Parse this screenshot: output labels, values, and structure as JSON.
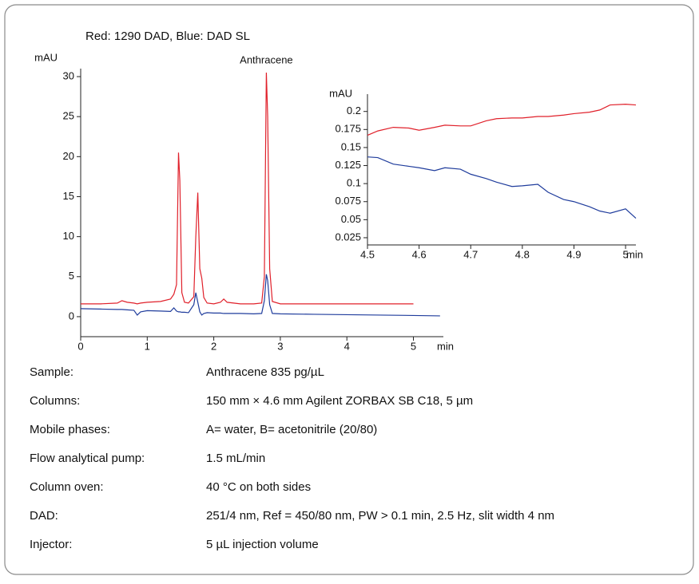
{
  "chart_data": [
    {
      "type": "line",
      "title": "Red: 1290 DAD, Blue: DAD SL",
      "y_label": "mAU",
      "x_label": "min",
      "annotation": "Anthracene",
      "x": [
        0,
        0.3,
        0.55,
        0.62,
        0.7,
        0.8,
        0.85,
        0.9,
        1.0,
        1.2,
        1.35,
        1.4,
        1.44,
        1.47,
        1.49,
        1.52,
        1.56,
        1.62,
        1.7,
        1.73,
        1.76,
        1.79,
        1.82,
        1.85,
        1.9,
        2.0,
        2.1,
        2.15,
        2.2,
        2.4,
        2.6,
        2.72,
        2.76,
        2.79,
        2.81,
        2.84,
        2.88,
        3.0,
        3.5,
        4.0,
        4.5,
        5.0,
        5.4
      ],
      "series": [
        {
          "color": "#e0202a",
          "values": [
            1.6,
            1.6,
            1.7,
            2.0,
            1.8,
            1.7,
            1.6,
            1.7,
            1.8,
            1.9,
            2.2,
            2.8,
            4,
            20.5,
            17,
            3,
            1.8,
            1.7,
            2.5,
            10,
            15.5,
            6,
            4.8,
            2.4,
            1.7,
            1.6,
            1.8,
            2.2,
            1.8,
            1.6,
            1.6,
            1.7,
            5,
            30.5,
            25,
            6,
            1.9,
            1.6,
            1.6,
            1.6,
            1.6,
            1.6,
            null
          ]
        },
        {
          "color": "#1f3c9c",
          "values": [
            1.0,
            0.95,
            0.9,
            0.9,
            0.85,
            0.8,
            0.2,
            0.6,
            0.75,
            0.7,
            0.65,
            1.1,
            0.7,
            0.6,
            0.6,
            0.55,
            0.55,
            0.5,
            1.5,
            3.0,
            1.8,
            0.6,
            0.2,
            0.4,
            0.5,
            0.45,
            0.45,
            0.4,
            0.4,
            0.4,
            0.35,
            0.4,
            2.0,
            5.3,
            4.5,
            1.5,
            0.4,
            0.35,
            0.3,
            0.25,
            0.2,
            0.15,
            0.1
          ]
        }
      ],
      "xlim": [
        0,
        5.45
      ],
      "xticks": [
        0,
        1,
        2,
        3,
        4,
        5
      ],
      "ylim": [
        -2.5,
        31
      ],
      "yticks": [
        0,
        5,
        10,
        15,
        20,
        25,
        30
      ]
    },
    {
      "type": "line",
      "y_label": "mAU",
      "x_label": "min",
      "x": [
        4.5,
        4.52,
        4.55,
        4.58,
        4.6,
        4.63,
        4.65,
        4.68,
        4.7,
        4.73,
        4.75,
        4.78,
        4.8,
        4.83,
        4.85,
        4.88,
        4.9,
        4.93,
        4.95,
        4.97,
        5.0,
        5.02
      ],
      "series": [
        {
          "color": "#e0202a",
          "values": [
            0.167,
            0.173,
            0.178,
            0.177,
            0.174,
            0.178,
            0.181,
            0.18,
            0.18,
            0.187,
            0.19,
            0.191,
            0.191,
            0.193,
            0.193,
            0.195,
            0.197,
            0.199,
            0.202,
            0.209,
            0.21,
            0.209
          ]
        },
        {
          "color": "#1f3c9c",
          "values": [
            0.137,
            0.136,
            0.127,
            0.124,
            0.122,
            0.118,
            0.122,
            0.12,
            0.113,
            0.107,
            0.102,
            0.096,
            0.097,
            0.099,
            0.088,
            0.078,
            0.075,
            0.068,
            0.062,
            0.059,
            0.065,
            0.052
          ]
        }
      ],
      "xlim": [
        4.5,
        5.02
      ],
      "xticks": [
        4.5,
        4.6,
        4.7,
        4.8,
        4.9,
        5
      ],
      "ylim": [
        0.015,
        0.224
      ],
      "yticks": [
        0.025,
        0.05,
        0.075,
        0.1,
        0.125,
        0.15,
        0.175,
        0.2
      ]
    }
  ],
  "conditions": [
    [
      "Sample:",
      "Anthracene 835 pg/µL"
    ],
    [
      "Columns:",
      "150 mm × 4.6 mm Agilent ZORBAX SB C18, 5 µm"
    ],
    [
      "Mobile phases:",
      "A= water, B= acetonitrile (20/80)"
    ],
    [
      "Flow analytical pump:",
      "1.5 mL/min"
    ],
    [
      "Column oven:",
      "40 °C on both sides"
    ],
    [
      "DAD:",
      "251/4 nm, Ref = 450/80 nm, PW > 0.1 min, 2.5 Hz, slit width 4 nm"
    ],
    [
      "Injector:",
      "5 µL injection volume"
    ]
  ]
}
